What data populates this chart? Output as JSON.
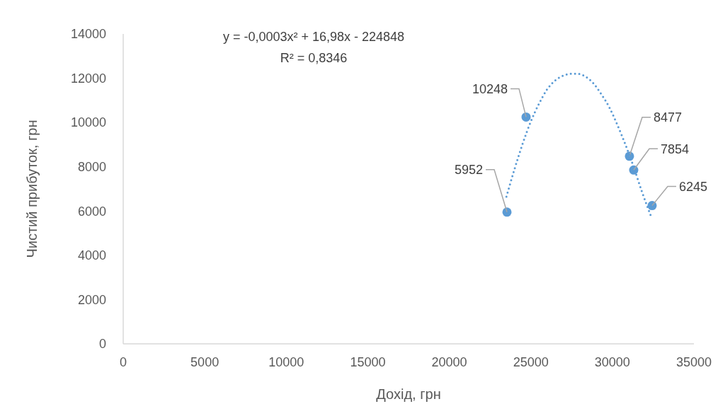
{
  "chart_data": {
    "type": "scatter",
    "xlabel": "Дохід, грн",
    "ylabel": "Чистий прибуток, грн",
    "xlim": [
      0,
      35000
    ],
    "xticks": [
      0,
      5000,
      10000,
      15000,
      20000,
      25000,
      30000,
      35000
    ],
    "ylim": [
      0,
      14000
    ],
    "yticks": [
      0,
      2000,
      4000,
      6000,
      8000,
      10000,
      12000,
      14000
    ],
    "grid": false,
    "marker": "circle",
    "annotations": [
      "y = -0,0003x² + 16,98x - 224848",
      "R² = 0,8346"
    ],
    "series": [
      {
        "color": "#5b9bd5",
        "x": [
          23535,
          24707,
          31046,
          31307,
          32436
        ],
        "values": [
          5952,
          10248,
          8477,
          7854,
          6245
        ],
        "value_labels": [
          "5952",
          "10248",
          "8477",
          "7854",
          "6245"
        ]
      },
      {
        "type": "line",
        "color": "#5b9bd5",
        "line_style": "dotted",
        "marker": "none",
        "x": [
          23500,
          24000,
          24500,
          25000,
          25500,
          26000,
          26500,
          27000,
          27500,
          27900,
          28300,
          28800,
          29300,
          29800,
          30300,
          30800,
          31300,
          31800,
          32390
        ],
        "values": [
          6650,
          7900,
          9050,
          10050,
          10850,
          11500,
          11900,
          12120,
          12200,
          12200,
          12100,
          11800,
          11300,
          10700,
          9900,
          9000,
          8000,
          6900,
          5720
        ]
      }
    ]
  }
}
